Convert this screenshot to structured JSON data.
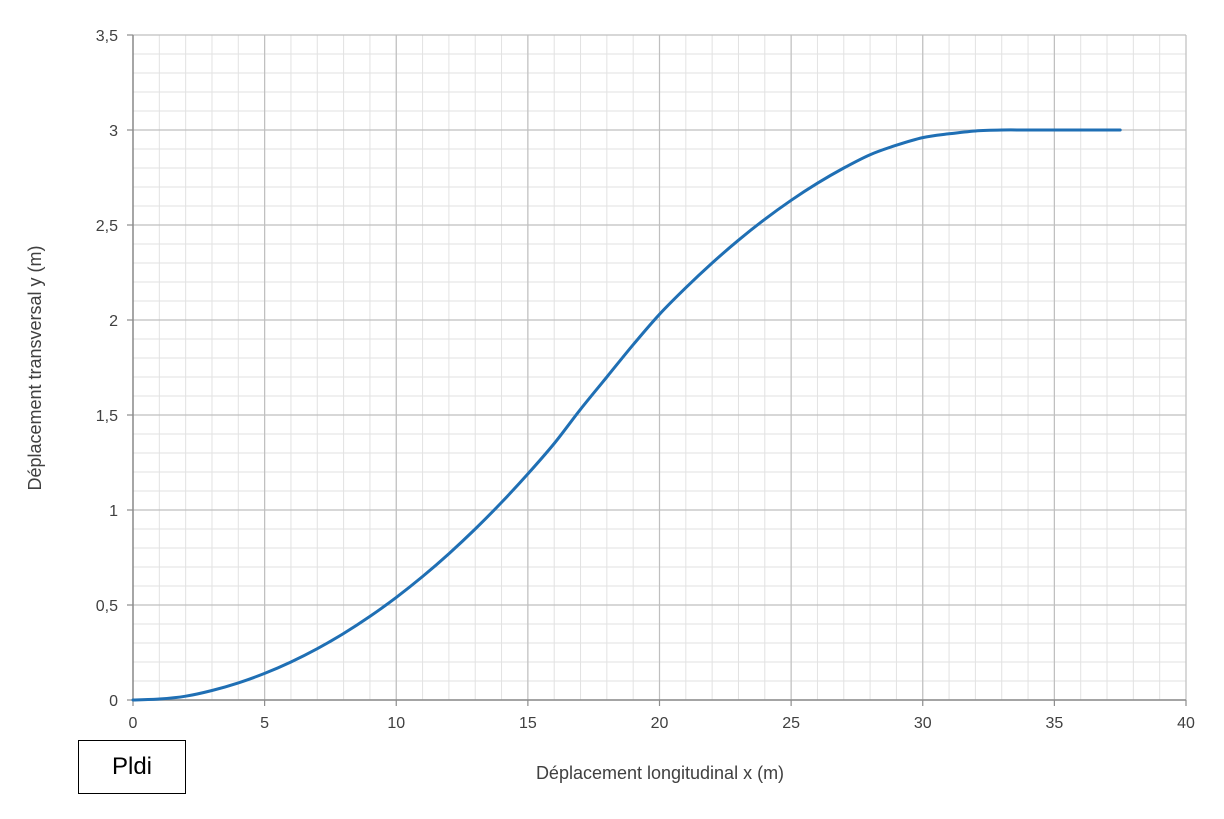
{
  "chart_data": {
    "type": "line",
    "title": "",
    "xlabel": "Déplacement longitudinal x (m)",
    "ylabel": "Déplacement transversal y (m)",
    "xlim": [
      0,
      40
    ],
    "ylim": [
      0,
      3.5
    ],
    "x_ticks": [
      0,
      5,
      10,
      15,
      20,
      25,
      30,
      35,
      40
    ],
    "y_ticks": [
      0,
      0.5,
      1,
      1.5,
      2,
      2.5,
      3,
      3.5
    ],
    "x_tick_labels": [
      "0",
      "5",
      "10",
      "15",
      "20",
      "25",
      "30",
      "35",
      "40"
    ],
    "y_tick_labels": [
      "0",
      "0,5",
      "1",
      "1,5",
      "2",
      "2,5",
      "3",
      "3,5"
    ],
    "grid": true,
    "minor_grid": true,
    "legend": "none",
    "series": [
      {
        "color": "#1f6fb4",
        "x": [
          0,
          1,
          2,
          3,
          4,
          5,
          6,
          7,
          8,
          9,
          10,
          11,
          12,
          13,
          14,
          15,
          16,
          17,
          18,
          19,
          20,
          21,
          22,
          23,
          24,
          25,
          26,
          27,
          28,
          29,
          30,
          31,
          32,
          33,
          34,
          35,
          36,
          37.5
        ],
        "y": [
          0,
          0.005,
          0.02,
          0.05,
          0.09,
          0.14,
          0.2,
          0.27,
          0.35,
          0.44,
          0.54,
          0.65,
          0.77,
          0.9,
          1.04,
          1.19,
          1.35,
          1.53,
          1.7,
          1.87,
          2.03,
          2.17,
          2.3,
          2.42,
          2.53,
          2.63,
          2.72,
          2.8,
          2.87,
          2.92,
          2.96,
          2.98,
          2.995,
          3.0,
          3.0,
          3.0,
          3.0,
          3.0
        ]
      }
    ]
  },
  "annotation": {
    "box_text": "Pldi"
  }
}
